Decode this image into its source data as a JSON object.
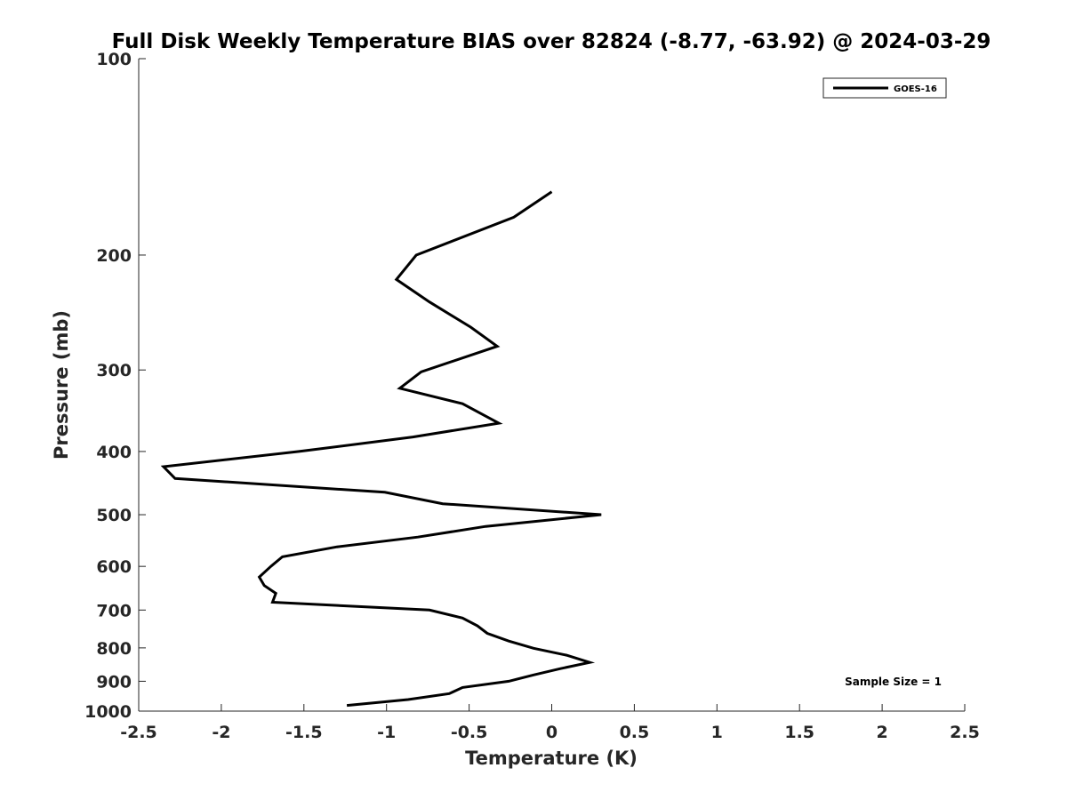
{
  "chart_data": {
    "type": "line",
    "title": "Full Disk Weekly Temperature BIAS over 82824 (-8.77, -63.92) @ 2024-03-29",
    "xlabel": "Temperature (K)",
    "ylabel": "Pressure (mb)",
    "xlim": [
      -2.5,
      2.5
    ],
    "ylim": [
      100,
      1000
    ],
    "y_scale": "log",
    "y_direction": "reversed",
    "grid": false,
    "legend_placement": "top-right",
    "x_ticks": [
      "-2.5",
      "-2",
      "-1.5",
      "-1",
      "-0.5",
      "0",
      "0.5",
      "1",
      "1.5",
      "2",
      "2.5"
    ],
    "x_tick_values": [
      -2.5,
      -2,
      -1.5,
      -1,
      -0.5,
      0,
      0.5,
      1,
      1.5,
      2,
      2.5
    ],
    "y_ticks": [
      "100",
      "200",
      "300",
      "400",
      "500",
      "600",
      "700",
      "800",
      "900",
      "1000"
    ],
    "y_tick_values": [
      100,
      200,
      300,
      400,
      500,
      600,
      700,
      800,
      900,
      1000
    ],
    "series": [
      {
        "name": "GOES-16",
        "color": "#000000",
        "points": [
          {
            "x": 0.0,
            "y": 160
          },
          {
            "x": -0.23,
            "y": 175
          },
          {
            "x": -0.82,
            "y": 200
          },
          {
            "x": -0.94,
            "y": 218
          },
          {
            "x": -0.74,
            "y": 236
          },
          {
            "x": -0.49,
            "y": 258
          },
          {
            "x": -0.33,
            "y": 276
          },
          {
            "x": -0.79,
            "y": 302
          },
          {
            "x": -0.92,
            "y": 320
          },
          {
            "x": -0.54,
            "y": 338
          },
          {
            "x": -0.32,
            "y": 362
          },
          {
            "x": -0.84,
            "y": 380
          },
          {
            "x": -1.53,
            "y": 400
          },
          {
            "x": -2.35,
            "y": 422
          },
          {
            "x": -2.28,
            "y": 440
          },
          {
            "x": -1.01,
            "y": 462
          },
          {
            "x": -0.66,
            "y": 481
          },
          {
            "x": 0.3,
            "y": 500
          },
          {
            "x": -0.4,
            "y": 521
          },
          {
            "x": -0.81,
            "y": 541
          },
          {
            "x": -1.3,
            "y": 560
          },
          {
            "x": -1.63,
            "y": 580
          },
          {
            "x": -1.7,
            "y": 600
          },
          {
            "x": -1.77,
            "y": 623
          },
          {
            "x": -1.74,
            "y": 642
          },
          {
            "x": -1.67,
            "y": 660
          },
          {
            "x": -1.69,
            "y": 681
          },
          {
            "x": -0.74,
            "y": 700
          },
          {
            "x": -0.54,
            "y": 720
          },
          {
            "x": -0.45,
            "y": 740
          },
          {
            "x": -0.39,
            "y": 760
          },
          {
            "x": -0.26,
            "y": 781
          },
          {
            "x": -0.11,
            "y": 801
          },
          {
            "x": 0.09,
            "y": 821
          },
          {
            "x": 0.23,
            "y": 842
          },
          {
            "x": 0.05,
            "y": 861
          },
          {
            "x": -0.11,
            "y": 880
          },
          {
            "x": -0.26,
            "y": 900
          },
          {
            "x": -0.54,
            "y": 920
          },
          {
            "x": -0.62,
            "y": 940
          },
          {
            "x": -0.87,
            "y": 960
          },
          {
            "x": -1.24,
            "y": 980
          }
        ]
      }
    ],
    "annotation": "Sample Size = 1"
  }
}
